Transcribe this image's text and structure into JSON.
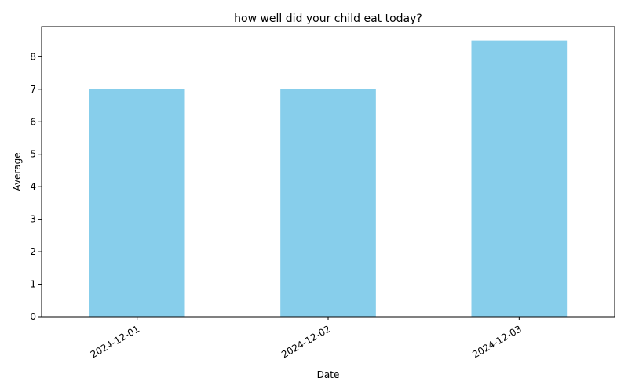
{
  "chart_data": {
    "type": "bar",
    "title": "how well did your child eat today?",
    "xlabel": "Date",
    "ylabel": "Average",
    "categories": [
      "2024-12-01",
      "2024-12-02",
      "2024-12-03"
    ],
    "values": [
      7,
      7,
      8.5
    ],
    "ylim": [
      0,
      8.925
    ],
    "yticks": [
      0,
      1,
      2,
      3,
      4,
      5,
      6,
      7,
      8
    ],
    "grid": false,
    "bar_color": "#87CEEB",
    "x_tick_rotation_deg": 30
  }
}
